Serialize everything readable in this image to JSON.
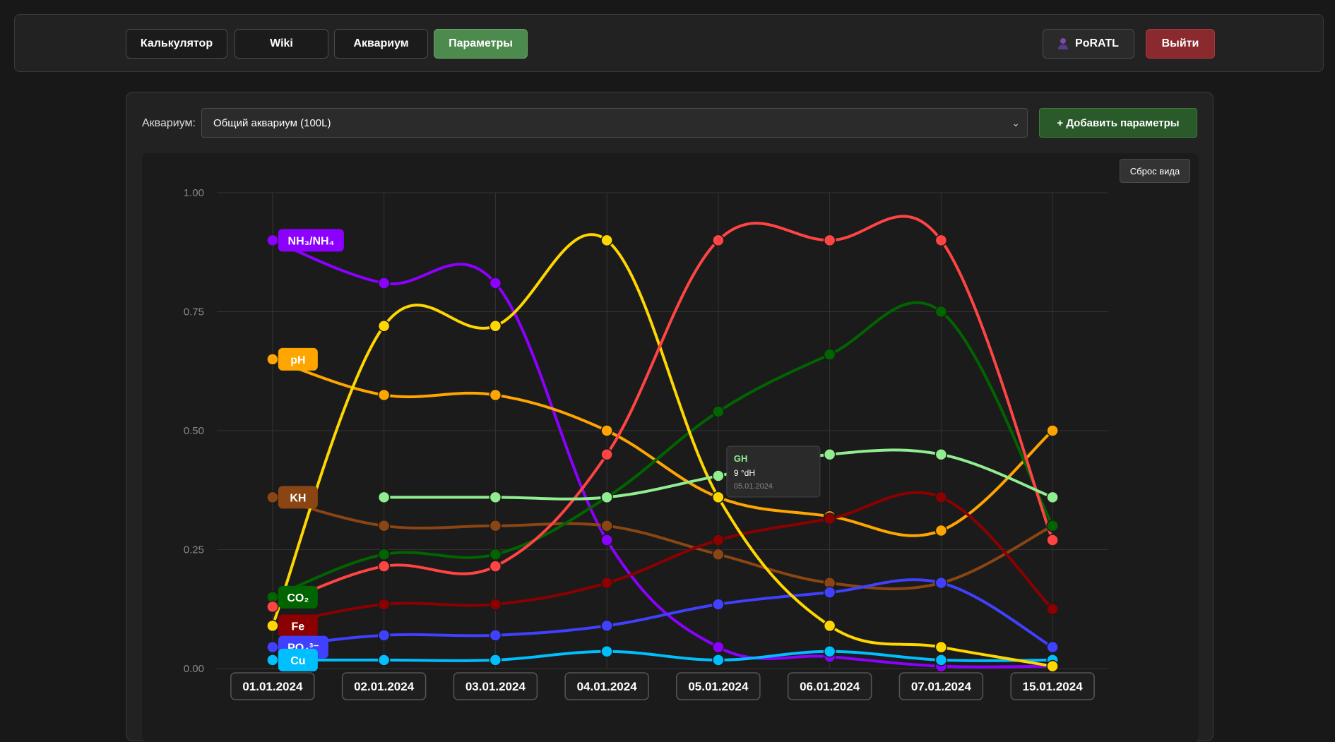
{
  "nav": {
    "calculator": "Калькулятор",
    "wiki": "Wiki",
    "aquarium": "Аквариум",
    "parameters": "Параметры",
    "user": "PoRATL",
    "logout": "Выйти"
  },
  "controls": {
    "aquarium_label": "Аквариум:",
    "aquarium_selected": "Общий аквариум (100L)",
    "add_button": "+ Добавить параметры",
    "reset_button": "Сброс вида"
  },
  "tooltip": {
    "series": "GH",
    "value": "9 °dH",
    "date": "05.01.2024"
  },
  "chart_data": {
    "type": "line",
    "categories": [
      "01.01.2024",
      "02.01.2024",
      "03.01.2024",
      "04.01.2024",
      "05.01.2024",
      "06.01.2024",
      "07.01.2024",
      "15.01.2024"
    ],
    "ylim": [
      0,
      1
    ],
    "yticks": [
      "0.00",
      "0.25",
      "0.50",
      "0.75",
      "1.00"
    ],
    "grid": true,
    "series": [
      {
        "name": "NH₃/NH₄",
        "color": "#8b00ff",
        "values": [
          0.9,
          0.81,
          0.81,
          0.27,
          0.045,
          0.025,
          0.005,
          0.005
        ]
      },
      {
        "name": "pH",
        "color": "#ffa500",
        "values": [
          0.65,
          0.575,
          0.575,
          0.5,
          0.36,
          0.32,
          0.29,
          0.5
        ]
      },
      {
        "name": "KH",
        "color": "#8b4513",
        "values": [
          0.36,
          0.3,
          0.3,
          0.3,
          0.24,
          0.18,
          0.18,
          0.3
        ]
      },
      {
        "name": "CO₂",
        "color": "#006400",
        "values": [
          0.15,
          0.24,
          0.24,
          0.36,
          0.54,
          0.66,
          0.75,
          0.3
        ]
      },
      {
        "name": "Fe",
        "color": "#8b0000",
        "values": [
          0.09,
          0.135,
          0.135,
          0.18,
          0.27,
          0.315,
          0.36,
          0.125
        ]
      },
      {
        "name": "PO₄³⁻",
        "color": "#4040ff",
        "values": [
          0.045,
          0.07,
          0.07,
          0.09,
          0.135,
          0.16,
          0.18,
          0.045
        ]
      },
      {
        "name": "Cu",
        "color": "#00bfff",
        "values": [
          0.018,
          0.018,
          0.018,
          0.036,
          0.018,
          0.036,
          0.018,
          0.018
        ]
      },
      {
        "name": "",
        "color": "#ffd700",
        "values": [
          0.09,
          0.72,
          0.72,
          0.9,
          0.36,
          0.09,
          0.045,
          0.005
        ]
      },
      {
        "name": "",
        "color": "#ff4444",
        "values": [
          0.13,
          0.215,
          0.215,
          0.45,
          0.9,
          0.9,
          0.9,
          0.27
        ]
      },
      {
        "name": "GH",
        "color": "#90ee90",
        "values": [
          null,
          0.36,
          0.36,
          0.36,
          0.405,
          0.45,
          0.45,
          0.36
        ]
      }
    ]
  }
}
